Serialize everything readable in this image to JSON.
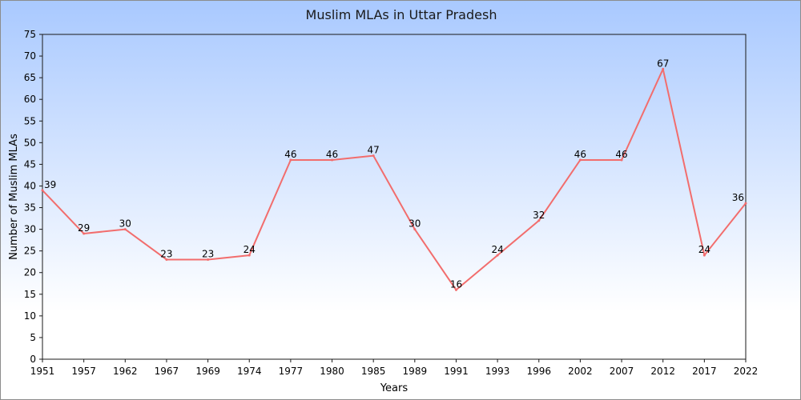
{
  "chart_data": {
    "type": "line",
    "title": "Muslim MLAs in Uttar Pradesh",
    "xlabel": "Years",
    "ylabel": "Number of Muslim MLAs",
    "categories": [
      "1951",
      "1957",
      "1962",
      "1967",
      "1969",
      "1974",
      "1977",
      "1980",
      "1985",
      "1989",
      "1991",
      "1993",
      "1996",
      "2002",
      "2007",
      "2012",
      "2017",
      "2022"
    ],
    "series": [
      {
        "values": [
          39,
          29,
          30,
          23,
          23,
          24,
          46,
          46,
          47,
          30,
          16,
          24,
          32,
          46,
          46,
          67,
          24,
          36
        ],
        "color": "#f26d6d"
      }
    ],
    "ylim": [
      0,
      75
    ],
    "yticks": [
      "0",
      "5",
      "10",
      "15",
      "20",
      "25",
      "30",
      "35",
      "40",
      "45",
      "50",
      "55",
      "60",
      "65",
      "70",
      "75"
    ],
    "grid": false,
    "legend": "none",
    "background_gradient": [
      "#a9c9ff",
      "#ffffff"
    ]
  }
}
